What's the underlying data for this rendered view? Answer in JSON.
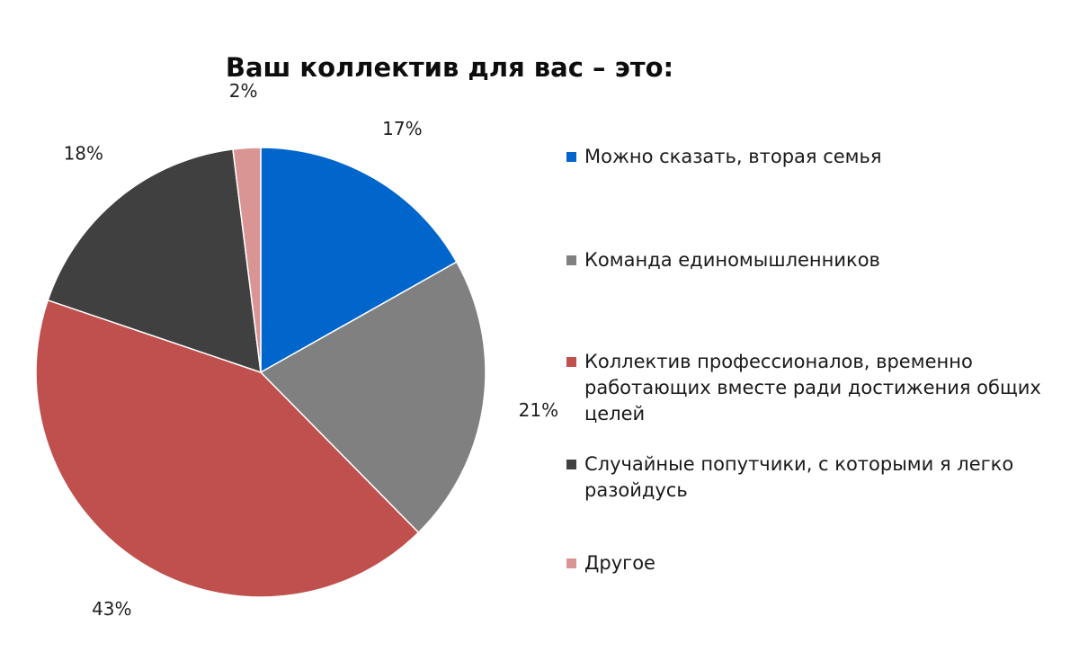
{
  "chart_data": {
    "type": "pie",
    "title": "Ваш коллектив для вас – это:",
    "start_angle_deg": 0,
    "direction": "clockwise",
    "legend_position": "right",
    "slices": [
      {
        "label": "Можно сказать, вторая семья",
        "value": 17,
        "value_label": "17%",
        "color": "#0066CC"
      },
      {
        "label": "Команда единомышленников",
        "value": 21,
        "value_label": "21%",
        "color": "#808080"
      },
      {
        "label": "Коллектив профессионалов, временно работающих вместе ради достижения общих целей",
        "value": 43,
        "value_label": "43%",
        "color": "#C0504D"
      },
      {
        "label": "Случайные попутчики,  с которыми я легко разойдусь",
        "value": 18,
        "value_label": "18%",
        "color": "#404040"
      },
      {
        "label": "Другое",
        "value": 2,
        "value_label": "2%",
        "color": "#D99594"
      }
    ]
  }
}
